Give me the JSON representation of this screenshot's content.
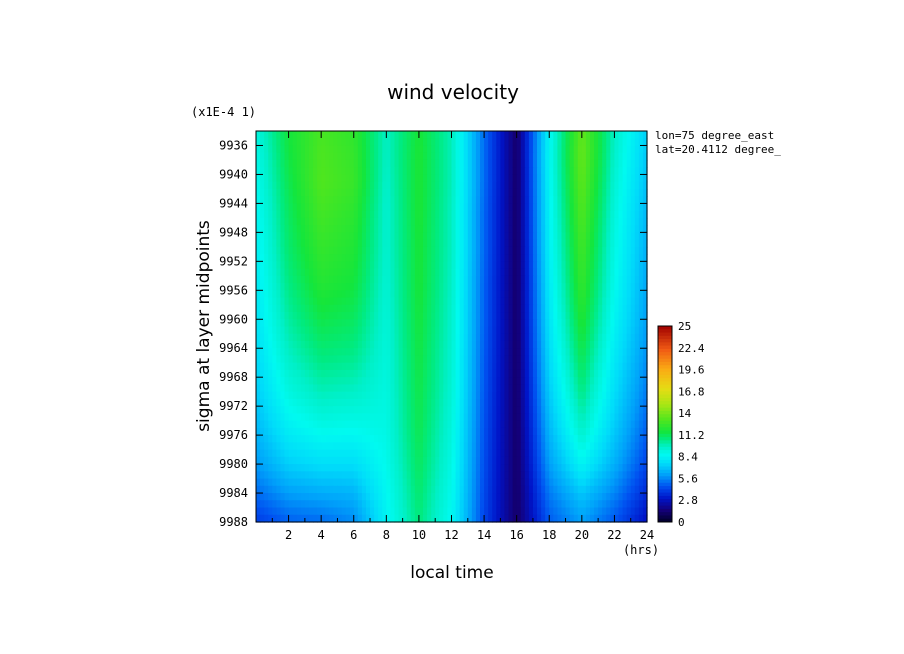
{
  "chart_data": {
    "type": "heatmap",
    "title": "wind velocity",
    "xlabel": "local time",
    "ylabel": "sigma at layer midpoints",
    "x_unit": "(hrs)",
    "y_scale_note": "(x1E-4 1)",
    "annotations": [
      "lon=75 degree_east",
      "lat=20.4112 degree_"
    ],
    "x_ticks": [
      "2",
      "4",
      "6",
      "8",
      "10",
      "12",
      "14",
      "16",
      "18",
      "20",
      "22",
      "24"
    ],
    "y_ticks": [
      "9936",
      "9940",
      "9944",
      "9948",
      "9952",
      "9956",
      "9960",
      "9964",
      "9968",
      "9972",
      "9976",
      "9980",
      "9984",
      "9988"
    ],
    "xlim": [
      0,
      24
    ],
    "ylim": [
      0.9934,
      0.9988
    ],
    "y_inverted": true,
    "x": [
      0,
      2,
      4,
      6,
      8,
      10,
      12,
      14,
      16,
      18,
      20,
      22,
      24
    ],
    "y": [
      0.9934,
      0.9937,
      0.9941,
      0.9945,
      0.995,
      0.9955,
      0.996,
      0.9965,
      0.997,
      0.9975,
      0.998,
      0.9984,
      0.9988
    ],
    "z": [
      [
        9.0,
        11.5,
        12.8,
        12.2,
        9.6,
        11.6,
        9.8,
        5.0,
        1.2,
        8.4,
        13.4,
        9.6,
        7.2
      ],
      [
        8.8,
        11.4,
        12.9,
        12.3,
        9.6,
        11.7,
        9.8,
        5.0,
        1.2,
        8.5,
        13.5,
        9.5,
        7.0
      ],
      [
        8.6,
        11.2,
        13.0,
        12.4,
        9.5,
        11.7,
        9.8,
        5.0,
        1.2,
        8.4,
        13.3,
        9.3,
        6.8
      ],
      [
        8.4,
        11.0,
        12.7,
        12.1,
        9.4,
        11.7,
        9.7,
        4.9,
        1.2,
        8.3,
        13.0,
        9.1,
        6.6
      ],
      [
        8.2,
        10.8,
        12.3,
        11.8,
        9.4,
        11.6,
        9.7,
        4.9,
        1.2,
        8.2,
        12.6,
        8.9,
        6.4
      ],
      [
        8.0,
        10.5,
        11.9,
        11.5,
        9.3,
        11.6,
        9.6,
        4.8,
        1.2,
        8.0,
        12.3,
        8.7,
        6.2
      ],
      [
        7.8,
        10.1,
        11.3,
        11.0,
        9.2,
        11.5,
        9.5,
        4.8,
        1.2,
        7.8,
        11.8,
        8.4,
        6.0
      ],
      [
        7.5,
        9.6,
        10.6,
        10.4,
        9.1,
        11.4,
        9.4,
        4.7,
        1.2,
        7.5,
        11.2,
        8.0,
        5.7
      ],
      [
        7.1,
        9.0,
        9.8,
        9.6,
        9.0,
        11.3,
        9.3,
        4.6,
        1.2,
        7.1,
        10.5,
        7.6,
        5.3
      ],
      [
        6.6,
        8.2,
        8.8,
        8.7,
        8.9,
        11.2,
        9.1,
        4.5,
        1.2,
        6.6,
        9.6,
        7.1,
        4.8
      ],
      [
        5.9,
        7.2,
        7.6,
        7.6,
        8.7,
        11.0,
        8.9,
        4.4,
        1.2,
        6.0,
        8.4,
        6.4,
        4.2
      ],
      [
        5.0,
        6.0,
        6.3,
        6.5,
        8.5,
        10.8,
        8.7,
        4.3,
        1.2,
        5.3,
        7.0,
        5.5,
        3.5
      ],
      [
        4.0,
        4.8,
        5.0,
        5.6,
        8.3,
        10.6,
        8.5,
        4.2,
        1.2,
        4.7,
        6.0,
        4.6,
        2.8
      ]
    ],
    "colorbar": {
      "ticks": [
        "25",
        "22.4",
        "19.6",
        "16.8",
        "14",
        "11.2",
        "8.4",
        "5.6",
        "2.8",
        "0"
      ],
      "min": 0,
      "max": 25
    },
    "grid": false
  }
}
